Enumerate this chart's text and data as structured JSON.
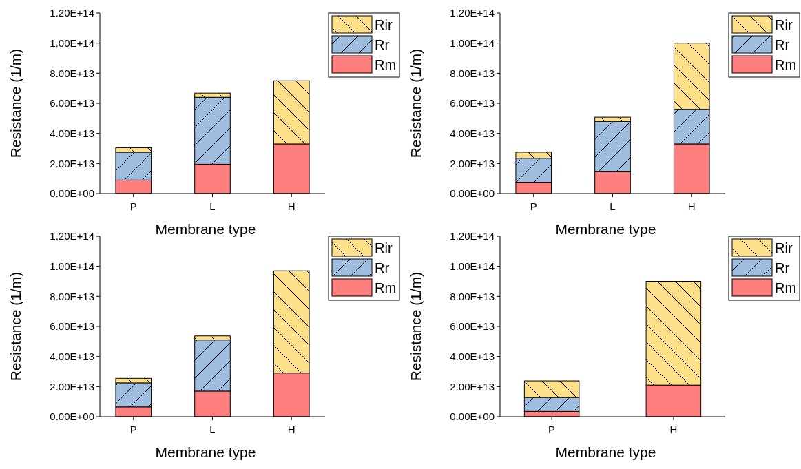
{
  "chart_data": [
    {
      "type": "bar",
      "stacked": true,
      "xlabel": "Membrane type",
      "ylabel": "Resistance (1/m)",
      "categories": [
        "P",
        "L",
        "H"
      ],
      "ylim": [
        0,
        120000000000000.0
      ],
      "yticks": [
        {
          "value": 0,
          "label": "0.00E+00"
        },
        {
          "value": 20000000000000.0,
          "label": "2.00E+13"
        },
        {
          "value": 40000000000000.0,
          "label": "4.00E+13"
        },
        {
          "value": 60000000000000.0,
          "label": "6.00E+13"
        },
        {
          "value": 80000000000000.0,
          "label": "8.00E+13"
        },
        {
          "value": 100000000000000.0,
          "label": "1.00E+14"
        },
        {
          "value": 120000000000000.0,
          "label": "1.20E+14"
        }
      ],
      "legend": "top right",
      "series": [
        {
          "name": "Rm",
          "color": "#ff7f7f",
          "values": [
            9000000000000.0,
            19500000000000.0,
            33000000000000.0
          ]
        },
        {
          "name": "Rr",
          "color": "#9fbddf",
          "values": [
            18500000000000.0,
            44500000000000.0,
            0
          ]
        },
        {
          "name": "Rir",
          "color": "#ffe08a",
          "values": [
            3000000000000.0,
            2800000000000.0,
            42000000000000.0
          ]
        }
      ]
    },
    {
      "type": "bar",
      "stacked": true,
      "xlabel": "Membrane type",
      "ylabel": "Resistance (1/m)",
      "categories": [
        "P",
        "L",
        "H"
      ],
      "ylim": [
        0,
        120000000000000.0
      ],
      "yticks": [
        {
          "value": 0,
          "label": "0.00E+00"
        },
        {
          "value": 20000000000000.0,
          "label": "2.00E+13"
        },
        {
          "value": 40000000000000.0,
          "label": "4.00E+13"
        },
        {
          "value": 60000000000000.0,
          "label": "6.00E+13"
        },
        {
          "value": 80000000000000.0,
          "label": "8.00E+13"
        },
        {
          "value": 100000000000000.0,
          "label": "1.00E+14"
        },
        {
          "value": 120000000000000.0,
          "label": "1.20E+14"
        }
      ],
      "legend": "top right",
      "series": [
        {
          "name": "Rm",
          "color": "#ff7f7f",
          "values": [
            7500000000000.0,
            14500000000000.0,
            33000000000000.0
          ]
        },
        {
          "name": "Rr",
          "color": "#9fbddf",
          "values": [
            16000000000000.0,
            33500000000000.0,
            23000000000000.0
          ]
        },
        {
          "name": "Rir",
          "color": "#ffe08a",
          "values": [
            4000000000000.0,
            2800000000000.0,
            44000000000000.0
          ]
        }
      ]
    },
    {
      "type": "bar",
      "stacked": true,
      "xlabel": "Membrane type",
      "ylabel": "Resistance (1/m)",
      "categories": [
        "P",
        "L",
        "H"
      ],
      "ylim": [
        0,
        120000000000000.0
      ],
      "yticks": [
        {
          "value": 0,
          "label": "0.00E+00"
        },
        {
          "value": 20000000000000.0,
          "label": "2.00E+13"
        },
        {
          "value": 40000000000000.0,
          "label": "4.00E+13"
        },
        {
          "value": 60000000000000.0,
          "label": "6.00E+13"
        },
        {
          "value": 80000000000000.0,
          "label": "8.00E+13"
        },
        {
          "value": 100000000000000.0,
          "label": "1.00E+14"
        },
        {
          "value": 120000000000000.0,
          "label": "1.20E+14"
        }
      ],
      "legend": "top right",
      "series": [
        {
          "name": "Rm",
          "color": "#ff7f7f",
          "values": [
            6500000000000.0,
            17000000000000.0,
            29000000000000.0
          ]
        },
        {
          "name": "Rr",
          "color": "#9fbddf",
          "values": [
            16000000000000.0,
            34000000000000.0,
            0
          ]
        },
        {
          "name": "Rir",
          "color": "#ffe08a",
          "values": [
            3000000000000.0,
            2700000000000.0,
            68000000000000.0
          ]
        }
      ]
    },
    {
      "type": "bar",
      "stacked": true,
      "xlabel": "Membrane type",
      "ylabel": "Resistance (1/m)",
      "categories": [
        "P",
        "H"
      ],
      "ylim": [
        0,
        120000000000000.0
      ],
      "yticks": [
        {
          "value": 0,
          "label": "0.00E+00"
        },
        {
          "value": 20000000000000.0,
          "label": "2.00E+13"
        },
        {
          "value": 40000000000000.0,
          "label": "4.00E+13"
        },
        {
          "value": 60000000000000.0,
          "label": "6.00E+13"
        },
        {
          "value": 80000000000000.0,
          "label": "8.00E+13"
        },
        {
          "value": 100000000000000.0,
          "label": "1.00E+14"
        },
        {
          "value": 120000000000000.0,
          "label": "1.20E+14"
        }
      ],
      "legend": "top right",
      "series": [
        {
          "name": "Rm",
          "color": "#ff7f7f",
          "values": [
            3500000000000.0,
            21000000000000.0
          ]
        },
        {
          "name": "Rr",
          "color": "#9fbddf",
          "values": [
            9300000000000.0,
            0
          ]
        },
        {
          "name": "Rir",
          "color": "#ffe08a",
          "values": [
            11000000000000.0,
            69000000000000.0
          ]
        }
      ]
    }
  ]
}
